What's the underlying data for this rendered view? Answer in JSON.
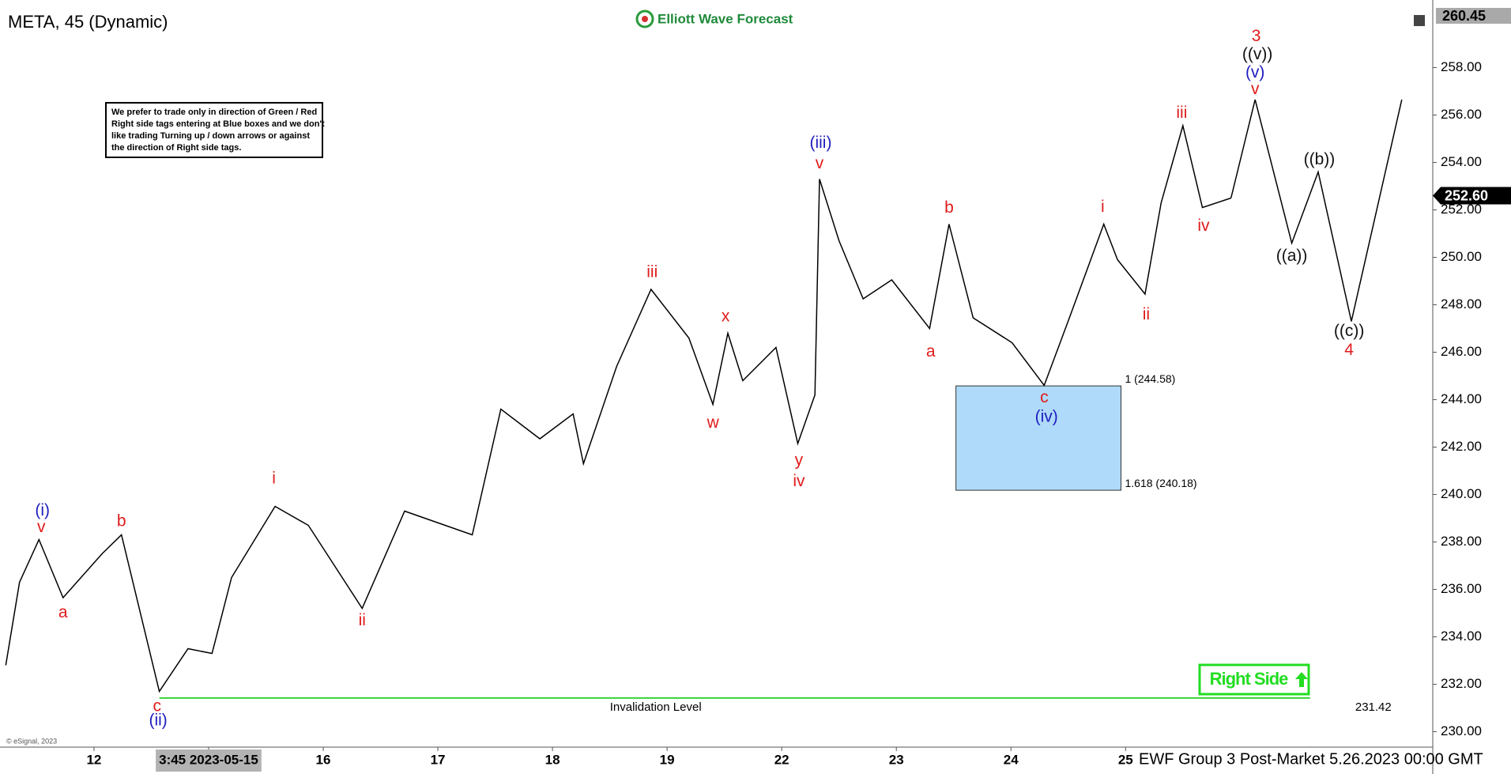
{
  "chart_data": {
    "type": "line",
    "title": "META, 45 (Dynamic)",
    "logo": "Elliott Wave Forecast",
    "note": [
      "We prefer to trade only in direction of Green / Red",
      "Right side tags entering at Blue boxes and we don't",
      "like trading Turning up / down arrows or against",
      "the direction of Right side tags."
    ],
    "footer": "EWF Group 3 Post-Market 5.26.2023 00:00 GMT",
    "copyright": "© eSignal, 2023",
    "right_side": "Right Side",
    "xlim": [
      0.18,
      12.68
    ],
    "ylim": [
      229.35,
      260.55
    ],
    "xticks": [
      {
        "value": 1,
        "label": "12"
      },
      {
        "value": 2,
        "label": "3:45 2023-05-15"
      },
      {
        "value": 3,
        "label": "16"
      },
      {
        "value": 4,
        "label": "17"
      },
      {
        "value": 5,
        "label": "18"
      },
      {
        "value": 6,
        "label": "19"
      },
      {
        "value": 7,
        "label": "22"
      },
      {
        "value": 8,
        "label": "23"
      },
      {
        "value": 9,
        "label": "24"
      },
      {
        "value": 10,
        "label": "25"
      }
    ],
    "yticks": [
      {
        "value": 230,
        "label": "230.00"
      },
      {
        "value": 232,
        "label": "232.00"
      },
      {
        "value": 234,
        "label": "234.00"
      },
      {
        "value": 236,
        "label": "236.00"
      },
      {
        "value": 238,
        "label": "238.00"
      },
      {
        "value": 240,
        "label": "240.00"
      },
      {
        "value": 242,
        "label": "242.00"
      },
      {
        "value": 244,
        "label": "244.00"
      },
      {
        "value": 246,
        "label": "246.00"
      },
      {
        "value": 248,
        "label": "248.00"
      },
      {
        "value": 250,
        "label": "250.00"
      },
      {
        "value": 252,
        "label": "252.00"
      },
      {
        "value": 254,
        "label": "254.00"
      },
      {
        "value": 256,
        "label": "256.00"
      },
      {
        "value": 258,
        "label": "258.00"
      }
    ],
    "grid": false,
    "top_marker": 260.45,
    "current_price": {
      "value": 252.6,
      "label": "252.60"
    },
    "series": [
      {
        "color": "#000000",
        "x": [
          0.23,
          0.35,
          0.52,
          0.73,
          1.07,
          1.24,
          1.57,
          1.82,
          2.03,
          2.2,
          2.58,
          2.87,
          3.34,
          3.71,
          4.3,
          4.55,
          4.89,
          5.18,
          5.27,
          5.56,
          5.86,
          6.19,
          6.4,
          6.53,
          6.66,
          6.95,
          7.14,
          7.29,
          7.33,
          7.5,
          7.71,
          7.96,
          8.29,
          8.46,
          8.67,
          9.01,
          9.29,
          9.51,
          9.81,
          9.93,
          10.17,
          10.31,
          10.5,
          10.67,
          10.92
        ],
        "values": [
          232.8,
          236.3,
          238.1,
          235.65,
          237.5,
          238.3,
          231.7,
          233.5,
          233.3,
          236.5,
          239.5,
          238.7,
          235.2,
          239.3,
          238.3,
          243.6,
          242.35,
          243.4,
          241.3,
          245.4,
          248.65,
          246.6,
          243.8,
          246.8,
          244.8,
          246.2,
          242.15,
          244.2,
          253.3,
          250.7,
          248.25,
          249.05,
          247.0,
          251.4,
          247.45,
          246.4,
          244.6,
          247.45,
          251.4,
          249.9,
          248.45,
          252.3,
          255.55,
          252.1,
          252.5
        ]
      },
      {
        "color": "#000000",
        "x": [
          10.92,
          11.13,
          11.45,
          11.68,
          11.97,
          12.41
        ],
        "values": [
          252.5,
          256.65,
          250.6,
          253.6,
          247.3,
          256.65
        ]
      }
    ],
    "box": {
      "x": [
        8.52,
        9.96
      ],
      "top": 244.58,
      "bottom": 240.18,
      "color": "#b0dafa",
      "top_label": "1 (244.58)",
      "bottom_label": "1.618 (240.18)"
    },
    "invalidation": {
      "value": 231.42,
      "label": "Invalidation Level",
      "x": [
        1.57,
        11.61
      ],
      "color": "#35d435"
    },
    "annotations": [
      {
        "text": "(i)",
        "x": 0.55,
        "y": 239.3,
        "color": "#1d1dbf"
      },
      {
        "text": "v",
        "x": 0.54,
        "y": 238.6,
        "color": "#e01b1b"
      },
      {
        "text": "a",
        "x": 0.73,
        "y": 235.0,
        "color": "#e01b1b"
      },
      {
        "text": "b",
        "x": 1.24,
        "y": 238.85,
        "color": "#e01b1b"
      },
      {
        "text": "c",
        "x": 1.55,
        "y": 231.05,
        "color": "#e01b1b"
      },
      {
        "text": "(ii)",
        "x": 1.56,
        "y": 230.45,
        "color": "#1d1dbf"
      },
      {
        "text": "i",
        "x": 2.57,
        "y": 240.65,
        "color": "#e01b1b"
      },
      {
        "text": "ii",
        "x": 3.34,
        "y": 234.67,
        "color": "#e01b1b"
      },
      {
        "text": "iii",
        "x": 5.87,
        "y": 249.35,
        "color": "#e01b1b"
      },
      {
        "text": "x",
        "x": 6.51,
        "y": 247.48,
        "color": "#e01b1b"
      },
      {
        "text": "w",
        "x": 6.4,
        "y": 243.0,
        "color": "#e01b1b"
      },
      {
        "text": "y",
        "x": 7.15,
        "y": 241.42,
        "color": "#e01b1b"
      },
      {
        "text": "iv",
        "x": 7.15,
        "y": 240.53,
        "color": "#e01b1b"
      },
      {
        "text": "(iii)",
        "x": 7.34,
        "y": 254.8,
        "color": "#1d1dbf"
      },
      {
        "text": "v",
        "x": 7.33,
        "y": 253.94,
        "color": "#e01b1b"
      },
      {
        "text": "a",
        "x": 8.3,
        "y": 246.0,
        "color": "#e01b1b"
      },
      {
        "text": "b",
        "x": 8.46,
        "y": 252.07,
        "color": "#e01b1b"
      },
      {
        "text": "c",
        "x": 9.29,
        "y": 244.07,
        "color": "#e01b1b"
      },
      {
        "text": "(iv)",
        "x": 9.31,
        "y": 243.25,
        "color": "#1d1dbf"
      },
      {
        "text": "i",
        "x": 9.8,
        "y": 252.1,
        "color": "#e01b1b"
      },
      {
        "text": "ii",
        "x": 10.18,
        "y": 247.56,
        "color": "#e01b1b"
      },
      {
        "text": "iii",
        "x": 10.49,
        "y": 256.06,
        "color": "#e01b1b"
      },
      {
        "text": "iv",
        "x": 10.68,
        "y": 251.3,
        "color": "#e01b1b"
      },
      {
        "text": "3",
        "x": 11.14,
        "y": 259.3,
        "color": "#e01b1b"
      },
      {
        "text": "((v))",
        "x": 11.15,
        "y": 258.53,
        "color": "#111111"
      },
      {
        "text": "(v)",
        "x": 11.13,
        "y": 257.76,
        "color": "#1d1dbf"
      },
      {
        "text": "v",
        "x": 11.13,
        "y": 257.07,
        "color": "#e01b1b"
      },
      {
        "text": "((a))",
        "x": 11.45,
        "y": 250.04,
        "color": "#111111"
      },
      {
        "text": "((b))",
        "x": 11.69,
        "y": 254.1,
        "color": "#111111"
      },
      {
        "text": "((c))",
        "x": 11.95,
        "y": 246.87,
        "color": "#111111"
      },
      {
        "text": "4",
        "x": 11.95,
        "y": 246.06,
        "color": "#e01b1b"
      }
    ]
  }
}
